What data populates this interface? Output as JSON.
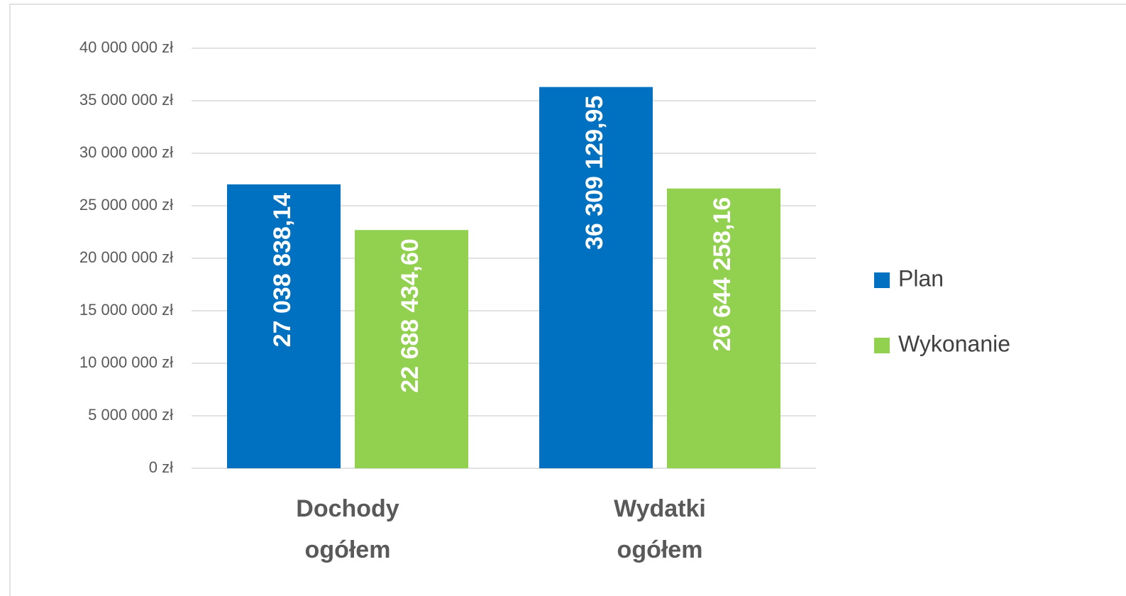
{
  "chart_data": {
    "type": "bar",
    "categories": [
      "Dochody ogółem",
      "Wydatki ogółem"
    ],
    "series": [
      {
        "name": "Plan",
        "color": "#0070c0",
        "values": [
          27038838.14,
          36309129.95
        ],
        "value_labels": [
          "27 038 838,14",
          "36 309 129,95"
        ]
      },
      {
        "name": "Wykonanie",
        "color": "#92d050",
        "values": [
          22688434.6,
          26644258.16
        ],
        "value_labels": [
          "22 688 434,60",
          "26 644 258,16"
        ]
      }
    ],
    "ylim": [
      0,
      40000000
    ],
    "yticks": [
      {
        "value": 0,
        "label": "0 zł"
      },
      {
        "value": 5000000,
        "label": "5 000 000 zł"
      },
      {
        "value": 10000000,
        "label": "10 000 000 zł"
      },
      {
        "value": 15000000,
        "label": "15 000 000 zł"
      },
      {
        "value": 20000000,
        "label": "20 000 000 zł"
      },
      {
        "value": 25000000,
        "label": "25 000 000 zł"
      },
      {
        "value": 30000000,
        "label": "30 000 000 zł"
      },
      {
        "value": 35000000,
        "label": "35 000 000 zł"
      },
      {
        "value": 40000000,
        "label": "40 000 000 zł"
      }
    ],
    "grid": true,
    "legend": "right"
  }
}
